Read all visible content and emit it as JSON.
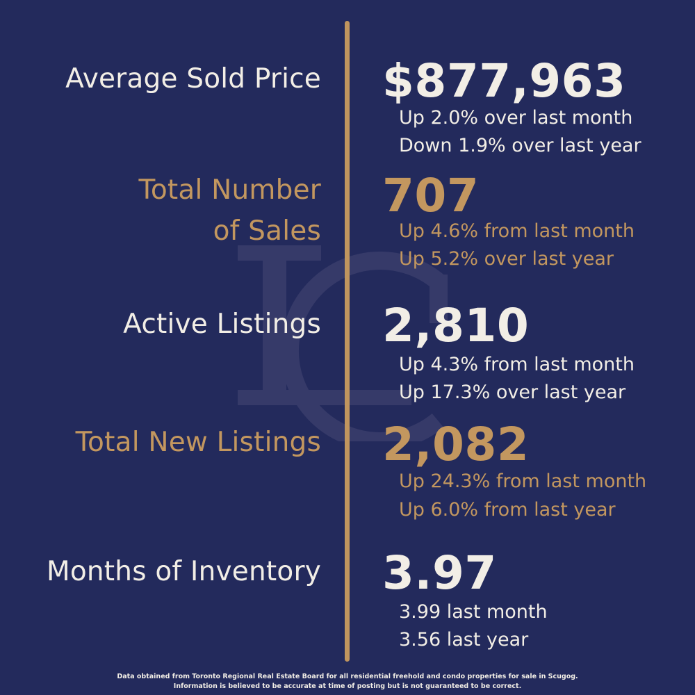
{
  "stats": [
    {
      "label_lines": [
        "Average Sold Price"
      ],
      "value": "$877,963",
      "sub": [
        "Up 2.0% over last month",
        "Down 1.9% over last year"
      ],
      "color": "#f2eee6"
    },
    {
      "label_lines": [
        "Total Number",
        "of Sales"
      ],
      "value": "707",
      "sub": [
        "Up 4.6% from last month",
        "Up 5.2% over last year"
      ],
      "color": "#c3975f"
    },
    {
      "label_lines": [
        "Active Listings"
      ],
      "value": "2,810",
      "sub": [
        "Up 4.3% from last month",
        "Up 17.3% over last year"
      ],
      "color": "#f2eee6"
    },
    {
      "label_lines": [
        "Total New Listings"
      ],
      "value": "2,082",
      "sub": [
        "Up 24.3% from last month",
        "Up 6.0% from last year"
      ],
      "color": "#c3975f"
    },
    {
      "label_lines": [
        "Months of Inventory"
      ],
      "value": "3.97",
      "sub": [
        "3.99 last month",
        "3.56 last year"
      ],
      "color": "#f2eee6"
    }
  ],
  "footer": {
    "line1": "Data obtained from Toronto Regional Real Estate Board for all residential freehold and condo properties for sale in Scugog.",
    "line2": "Information is believed to be accurate at time of posting but is not guaranteed to be correct."
  },
  "watermark": {
    "icon": "lc-monogram-icon"
  },
  "colors": {
    "background": "#232a5c",
    "accent_gold": "#c0955e",
    "text_light": "#f2eee6"
  }
}
